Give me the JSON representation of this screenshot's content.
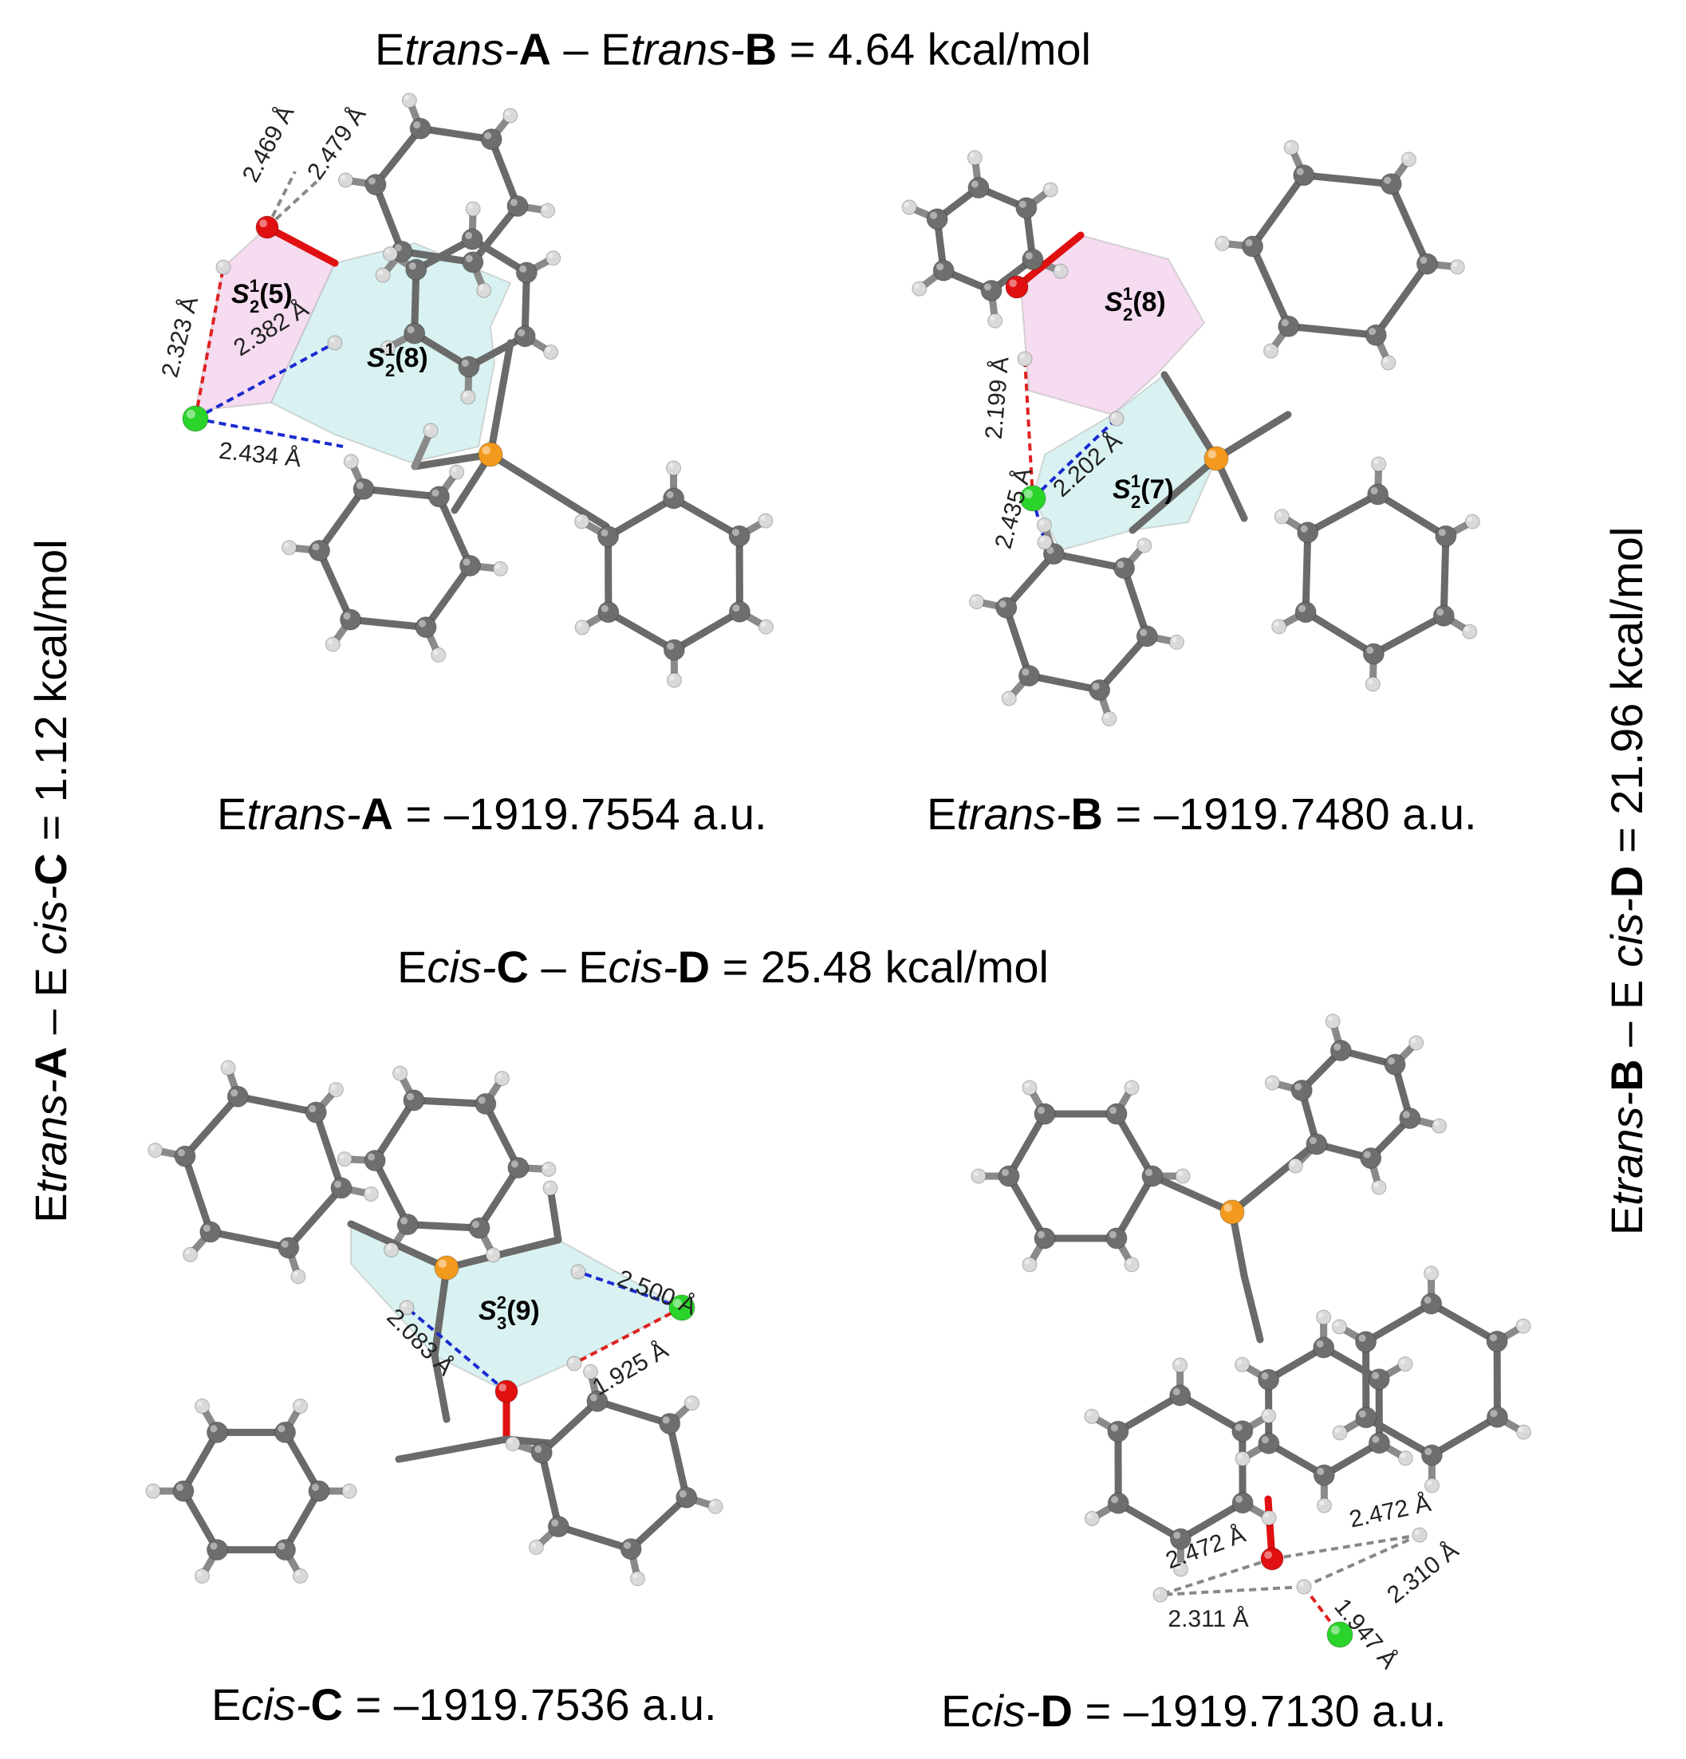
{
  "headers": {
    "top": {
      "e": "E",
      "a1": "trans-",
      "b1": "A",
      "minus": " – E",
      "a2": "trans-",
      "b2": "B",
      "rest": " = 4.64 kcal/mol"
    },
    "middle": {
      "e": "E",
      "a1": "cis-",
      "b1": "C",
      "minus": " – E",
      "a2": "cis-",
      "b2": "D",
      "rest": " = 25.48 kcal/mol"
    },
    "left": {
      "e": "E",
      "a1": "trans-",
      "b1": "A",
      "minus": " – E ",
      "a2": "cis-",
      "b2": "C",
      "rest": " = 1.12 kcal/mol"
    },
    "right": {
      "e": "E",
      "a1": "trans-",
      "b1": "B",
      "minus": " – E ",
      "a2": "cis-",
      "b2": "D",
      "rest": " = 21.96 kcal/mol"
    }
  },
  "energies": {
    "A": {
      "e": "E",
      "it": "trans-",
      "b": "A",
      "rest": " = –1919.7554 a.u."
    },
    "B": {
      "e": "E",
      "it": "trans-",
      "b": "B",
      "rest": " = –1919.7480 a.u."
    },
    "C": {
      "e": "E",
      "it": "cis-",
      "b": "C",
      "rest": " = –1919.7536 a.u."
    },
    "D": {
      "e": "E",
      "it": "cis-",
      "b": "D",
      "rest": " = –1919.7130 a.u."
    }
  },
  "distances": {
    "A": [
      "2.469 Å",
      "2.479 Å",
      "2.323 Å",
      "2.382 Å",
      "2.434 Å"
    ],
    "B": [
      "2.199 Å",
      "2.435 Å",
      "2.202 Å"
    ],
    "C": [
      "2.500 Å",
      "2.083 Å",
      "1.925 Å"
    ],
    "D": [
      "2.472 Å",
      "2.472 Å",
      "2.310 Å",
      "2.311 Å",
      "1.947 Å"
    ]
  },
  "rings": {
    "A": [
      {
        "s": "S",
        "sub": "2",
        "sup": "1",
        "n": "(5)"
      },
      {
        "s": "S",
        "sub": "2",
        "sup": "1",
        "n": "(8)"
      }
    ],
    "B": [
      {
        "s": "S",
        "sub": "2",
        "sup": "1",
        "n": "(8)"
      },
      {
        "s": "S",
        "sub": "2",
        "sup": "1",
        "n": "(7)"
      }
    ],
    "C": [
      {
        "s": "S",
        "sub": "3",
        "sup": "2",
        "n": "(9)"
      }
    ]
  },
  "colors": {
    "carbon": "#6e6e6e",
    "hydrogen": "#d9d9d9",
    "oxygen": "#e01010",
    "phosphorus": "#f39a1e",
    "chloride": "#2ad42a",
    "ring_pink": "#f5dcf0",
    "ring_cyan": "#d9f1f1",
    "hbond_red": "#e02020",
    "hbond_blue": "#1a2ad0",
    "contact_gray": "#888888"
  }
}
